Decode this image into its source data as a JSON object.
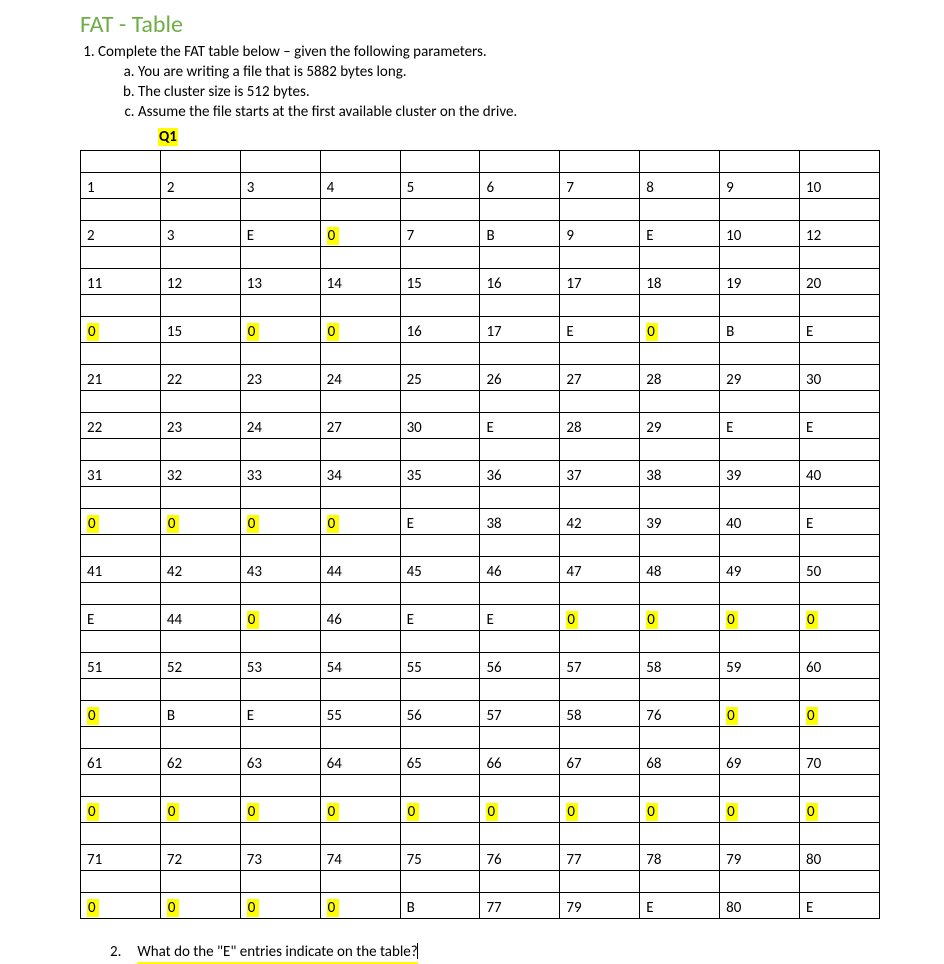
{
  "title": {
    "part1": "FAT",
    "sep": " - ",
    "part2": "Table"
  },
  "colors": {
    "title_part1": "#70ad47",
    "title_part2": "#70ad47",
    "highlight": "#ffff00",
    "underline": "#ffff00"
  },
  "question1": {
    "number": "1.",
    "text": "Complete the FAT table below – given the following parameters.",
    "subitems": [
      {
        "letter": "a.",
        "text": "You are writing a file that is 5882 bytes long."
      },
      {
        "letter": "b.",
        "text": "The cluster size is 512 bytes."
      },
      {
        "letter": "c.",
        "text": "Assume the file starts at the first available cluster on the drive."
      }
    ],
    "label": "Q1"
  },
  "fat_table": {
    "columns": 10,
    "rows": [
      {
        "index": [
          "1",
          "2",
          "3",
          "4",
          "5",
          "6",
          "7",
          "8",
          "9",
          "10"
        ],
        "value": [
          "2",
          "3",
          "E",
          "0",
          "7",
          "B",
          "9",
          "E",
          "10",
          "12"
        ],
        "highlight": [
          false,
          false,
          false,
          true,
          false,
          false,
          false,
          false,
          false,
          false
        ]
      },
      {
        "index": [
          "11",
          "12",
          "13",
          "14",
          "15",
          "16",
          "17",
          "18",
          "19",
          "20"
        ],
        "value": [
          "0",
          "15",
          "0",
          "0",
          "16",
          "17",
          "E",
          "0",
          "B",
          "E"
        ],
        "highlight": [
          true,
          false,
          true,
          true,
          false,
          false,
          false,
          true,
          false,
          false
        ]
      },
      {
        "index": [
          "21",
          "22",
          "23",
          "24",
          "25",
          "26",
          "27",
          "28",
          "29",
          "30"
        ],
        "value": [
          "22",
          "23",
          "24",
          "27",
          "30",
          "E",
          "28",
          "29",
          "E",
          "E"
        ],
        "highlight": [
          false,
          false,
          false,
          false,
          false,
          false,
          false,
          false,
          false,
          false
        ]
      },
      {
        "index": [
          "31",
          "32",
          "33",
          "34",
          "35",
          "36",
          "37",
          "38",
          "39",
          "40"
        ],
        "value": [
          "0",
          "0",
          "0",
          "0",
          "E",
          "38",
          "42",
          "39",
          "40",
          "E"
        ],
        "highlight": [
          true,
          true,
          true,
          true,
          false,
          false,
          false,
          false,
          false,
          false
        ]
      },
      {
        "index": [
          "41",
          "42",
          "43",
          "44",
          "45",
          "46",
          "47",
          "48",
          "49",
          "50"
        ],
        "value": [
          "E",
          "44",
          "0",
          "46",
          "E",
          "E",
          "0",
          "0",
          "0",
          "0"
        ],
        "highlight": [
          false,
          false,
          true,
          false,
          false,
          false,
          true,
          true,
          true,
          true
        ]
      },
      {
        "index": [
          "51",
          "52",
          "53",
          "54",
          "55",
          "56",
          "57",
          "58",
          "59",
          "60"
        ],
        "value": [
          "0",
          "B",
          "E",
          "55",
          "56",
          "57",
          "58",
          "76",
          "0",
          "0"
        ],
        "highlight": [
          true,
          false,
          false,
          false,
          false,
          false,
          false,
          false,
          true,
          true
        ]
      },
      {
        "index": [
          "61",
          "62",
          "63",
          "64",
          "65",
          "66",
          "67",
          "68",
          "69",
          "70"
        ],
        "value": [
          "0",
          "0",
          "0",
          "0",
          "0",
          "0",
          "0",
          "0",
          "0",
          "0"
        ],
        "highlight": [
          true,
          true,
          true,
          true,
          true,
          true,
          true,
          true,
          true,
          true
        ]
      },
      {
        "index": [
          "71",
          "72",
          "73",
          "74",
          "75",
          "76",
          "77",
          "78",
          "79",
          "80"
        ],
        "value": [
          "0",
          "0",
          "0",
          "0",
          "B",
          "77",
          "79",
          "E",
          "80",
          "E"
        ],
        "highlight": [
          true,
          true,
          true,
          true,
          false,
          false,
          false,
          false,
          false,
          false
        ]
      }
    ]
  },
  "question2": {
    "number": "2.",
    "text": "What do the \"E\" entries indicate on the table?"
  }
}
